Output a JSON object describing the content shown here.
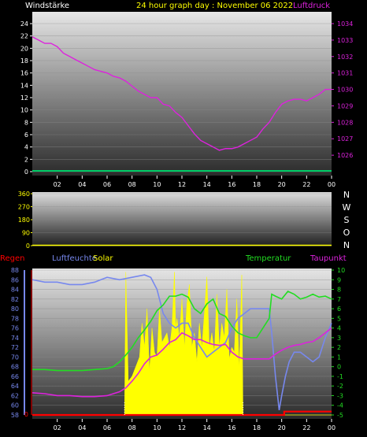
{
  "header": {
    "left_label": "Windstärke",
    "title": "24 hour graph day : November 06 2022",
    "right_label": "Luftdruck"
  },
  "colors": {
    "pressure": "#dd22dd",
    "wind": "#00cc66",
    "temperature": "#22dd22",
    "dewpoint": "#dd22dd",
    "humidity": "#7788ee",
    "solar": "#ffff00",
    "rain": "#ff0000",
    "title": "#ffff00"
  },
  "chart_data": [
    {
      "type": "line",
      "name": "top",
      "x_ticks": [
        "02",
        "04",
        "06",
        "08",
        "10",
        "12",
        "14",
        "16",
        "18",
        "20",
        "22",
        "00"
      ],
      "left_ylim": [
        0,
        24
      ],
      "left_ticks": [
        "0",
        "2",
        "4",
        "6",
        "8",
        "10",
        "12",
        "14",
        "16",
        "18",
        "20",
        "22",
        "24"
      ],
      "right_ylim": [
        1025,
        1034
      ],
      "right_ticks": [
        "1026",
        "1027",
        "1028",
        "1029",
        "1030",
        "1031",
        "1032",
        "1033",
        "1034"
      ],
      "series": [
        {
          "axis": "right",
          "x": [
            0,
            0.5,
            1,
            1.5,
            2,
            2.5,
            3,
            3.5,
            4,
            4.5,
            5,
            5.5,
            6,
            6.5,
            7,
            7.5,
            8,
            8.5,
            9,
            9.5,
            10,
            10.5,
            11,
            11.5,
            12,
            12.5,
            13,
            13.5,
            14,
            14.5,
            15,
            15.5,
            16,
            16.5,
            17,
            17.5,
            18,
            18.5,
            19,
            19.5,
            20,
            20.5,
            21,
            21.5,
            22,
            22.5,
            23,
            23.5,
            24
          ],
          "values": [
            1033.2,
            1033.0,
            1032.8,
            1032.8,
            1032.6,
            1032.2,
            1032.0,
            1031.8,
            1031.6,
            1031.4,
            1031.2,
            1031.1,
            1031.0,
            1030.8,
            1030.7,
            1030.5,
            1030.2,
            1029.9,
            1029.7,
            1029.5,
            1029.5,
            1029.1,
            1029.0,
            1028.6,
            1028.3,
            1027.8,
            1027.3,
            1026.9,
            1026.7,
            1026.5,
            1026.3,
            1026.4,
            1026.4,
            1026.5,
            1026.7,
            1026.9,
            1027.1,
            1027.6,
            1028.0,
            1028.6,
            1029.1,
            1029.3,
            1029.4,
            1029.4,
            1029.3,
            1029.5,
            1029.7,
            1030.0,
            1030.0
          ]
        },
        {
          "axis": "left",
          "x": [
            0,
            24
          ],
          "values": [
            0,
            0
          ]
        }
      ]
    },
    {
      "type": "line",
      "name": "wind-direction",
      "x_ticks": [],
      "left_ylim": [
        0,
        360
      ],
      "left_ticks": [
        "0",
        "90",
        "180",
        "270",
        "360"
      ],
      "right_labels": [
        "N",
        "W",
        "S",
        "O",
        "N"
      ],
      "series": [
        {
          "x": [
            0,
            24
          ],
          "values": [
            0,
            0
          ]
        }
      ]
    },
    {
      "type": "line",
      "name": "bottom",
      "legend": {
        "rain": "Regen",
        "humidity": "Luftfeuchte",
        "solar": "Solar",
        "temperature": "Temperatur",
        "dewpoint": "Taupunkt"
      },
      "x_ticks": [
        "02",
        "04",
        "06",
        "08",
        "10",
        "12",
        "14",
        "16",
        "18",
        "20",
        "22",
        "00"
      ],
      "left_ylim": [
        58,
        88
      ],
      "left_ticks": [
        "58",
        "60",
        "62",
        "64",
        "66",
        "68",
        "70",
        "72",
        "74",
        "76",
        "78",
        "80",
        "82",
        "84",
        "86",
        "88"
      ],
      "right_ylim": [
        -5,
        10
      ],
      "right_ticks": [
        "-5",
        "-4",
        "-3",
        "-2",
        "-1",
        "0",
        "1",
        "2",
        "3",
        "4",
        "5",
        "6",
        "7",
        "8",
        "9",
        "10"
      ],
      "rain_tick": "0",
      "series": [
        {
          "key": "humidity",
          "axis": "left",
          "x": [
            0,
            1,
            2,
            3,
            4,
            5,
            5.5,
            6,
            7,
            8,
            9,
            9.5,
            10,
            10.5,
            11,
            11.5,
            12,
            12.5,
            13,
            13.5,
            14,
            14.5,
            15,
            15.5,
            16,
            16.5,
            17,
            17.5,
            18,
            18.5,
            19,
            19.2,
            19.5,
            19.8,
            20,
            20.3,
            20.6,
            21,
            21.5,
            22,
            22.5,
            23,
            23.5,
            24
          ],
          "values": [
            86,
            85.5,
            85.5,
            85,
            85,
            85.5,
            86,
            86.5,
            86,
            86.5,
            87,
            86.5,
            84,
            79,
            77,
            76,
            77,
            77,
            74,
            72,
            70,
            71,
            72,
            73,
            76,
            78,
            79,
            80,
            80,
            80,
            80,
            75,
            66,
            59,
            62,
            66,
            69,
            71,
            71,
            70,
            69,
            70,
            74,
            77
          ]
        },
        {
          "key": "temperature",
          "axis": "right",
          "x": [
            0,
            1,
            2,
            3,
            4,
            5,
            6,
            6.5,
            7,
            7.5,
            8,
            8.5,
            9,
            9.5,
            10,
            10.5,
            11,
            11.5,
            12,
            12.5,
            13,
            13.5,
            14,
            14.5,
            15,
            15.5,
            16,
            16.5,
            17,
            17.5,
            18,
            18.5,
            19,
            19.2,
            19.5,
            20,
            20.5,
            21,
            21.5,
            22,
            22.5,
            23,
            23.5,
            24
          ],
          "values": [
            -0.3,
            -0.3,
            -0.4,
            -0.4,
            -0.4,
            -0.3,
            -0.2,
            0,
            0.5,
            1.2,
            2,
            3,
            3.8,
            4.7,
            5.8,
            6.4,
            7.3,
            7.3,
            7.5,
            7.2,
            6,
            5.5,
            6.5,
            7,
            5.5,
            5.2,
            4.2,
            3.5,
            3.2,
            3,
            3,
            4,
            5,
            7.5,
            7.3,
            7,
            7.8,
            7.5,
            7,
            7.2,
            7.5,
            7.2,
            7.3,
            7
          ]
        },
        {
          "key": "dewpoint",
          "axis": "right",
          "x": [
            0,
            1,
            2,
            3,
            4,
            5,
            6,
            6.5,
            7,
            7.5,
            8,
            8.5,
            9,
            9.5,
            10,
            10.5,
            11,
            11.5,
            12,
            12.5,
            13,
            13.5,
            14,
            14.5,
            15,
            15.5,
            16,
            16.5,
            17,
            18,
            19,
            19.5,
            20,
            20.5,
            21,
            21.5,
            22,
            22.5,
            23,
            23.5,
            24
          ],
          "values": [
            -2.7,
            -2.8,
            -3,
            -3,
            -3.1,
            -3.1,
            -3,
            -2.8,
            -2.6,
            -2.2,
            -1.5,
            -0.7,
            0.3,
            1,
            1.2,
            1.8,
            2.5,
            2.8,
            3.5,
            3.2,
            2.8,
            2.8,
            2.5,
            2.3,
            2.2,
            2.3,
            1.5,
            1,
            0.8,
            0.8,
            0.8,
            1.3,
            1.7,
            2,
            2.2,
            2.3,
            2.5,
            2.6,
            3,
            3.5,
            4
          ]
        },
        {
          "key": "solar",
          "axis": "right",
          "fill": true,
          "x": [
            0,
            7.4,
            7.5,
            7.7,
            8,
            8.3,
            8.6,
            8.8,
            9,
            9.2,
            9.4,
            9.6,
            9.8,
            10,
            10.2,
            10.4,
            10.6,
            10.8,
            11,
            11.2,
            11.4,
            11.5,
            11.6,
            11.8,
            12,
            12.2,
            12.4,
            12.6,
            12.8,
            13,
            13.2,
            13.4,
            13.6,
            13.8,
            14,
            14.2,
            14.4,
            14.6,
            14.8,
            15,
            15.2,
            15.4,
            15.6,
            15.8,
            16,
            16.2,
            16.4,
            16.6,
            16.8,
            16.9,
            17,
            24
          ],
          "values": [
            -5,
            -5,
            9.8,
            -1.5,
            -1,
            0,
            1,
            4.5,
            2,
            6,
            -0.5,
            4,
            1.5,
            1,
            6,
            2.5,
            3,
            3.5,
            2,
            4,
            9.8,
            4,
            5,
            3,
            7,
            2,
            6.5,
            8.5,
            2,
            3.5,
            0.5,
            4.5,
            2,
            5.5,
            9.3,
            2,
            3.5,
            1.5,
            7.5,
            2,
            4.5,
            3,
            8,
            0.8,
            2,
            1.5,
            7,
            -0.2,
            9.5,
            -5,
            -5,
            -5
          ]
        },
        {
          "key": "rain",
          "axis": "right",
          "x": [
            0,
            20.2,
            20.2,
            24
          ],
          "values": [
            -5,
            -5,
            -4.65,
            -4.65
          ]
        }
      ]
    }
  ]
}
